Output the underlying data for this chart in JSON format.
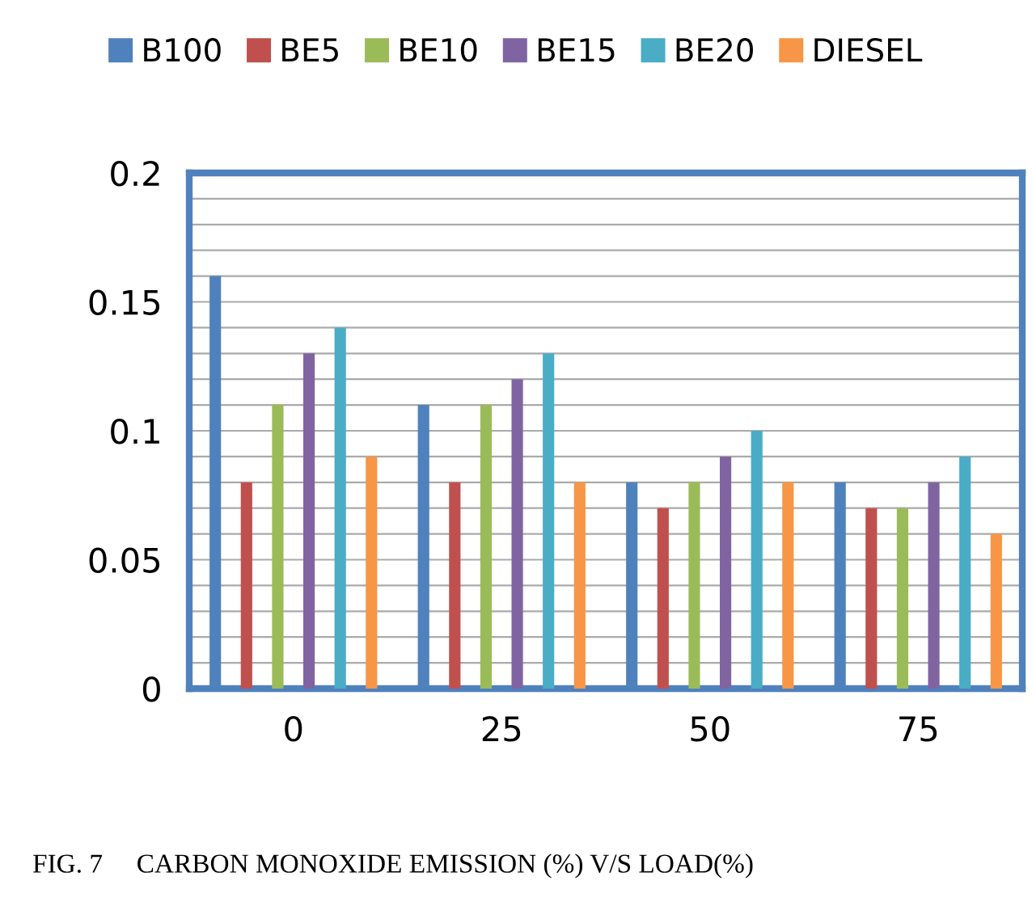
{
  "chart_data": {
    "type": "bar",
    "categories": [
      "0",
      "25",
      "50",
      "75"
    ],
    "series": [
      {
        "name": "B100",
        "color": "#4f81bd",
        "values": [
          0.16,
          0.11,
          0.08,
          0.08
        ]
      },
      {
        "name": "BE5",
        "color": "#c0504d",
        "values": [
          0.08,
          0.08,
          0.07,
          0.07
        ]
      },
      {
        "name": "BE10",
        "color": "#9bbb59",
        "values": [
          0.11,
          0.11,
          0.08,
          0.07
        ]
      },
      {
        "name": "BE15",
        "color": "#8064a2",
        "values": [
          0.13,
          0.12,
          0.09,
          0.08
        ]
      },
      {
        "name": "BE20",
        "color": "#4bacc6",
        "values": [
          0.14,
          0.13,
          0.1,
          0.09
        ]
      },
      {
        "name": "DIESEL",
        "color": "#f79646",
        "values": [
          0.09,
          0.08,
          0.08,
          0.06
        ]
      }
    ],
    "ylim": [
      0,
      0.2
    ],
    "yticks": [
      0,
      {
        "value": 0.01,
        "label": null
      },
      {
        "value": 0.02,
        "label": null
      },
      {
        "value": 0.03,
        "label": null
      },
      {
        "value": 0.04,
        "label": null
      },
      0.05,
      {
        "value": 0.06,
        "label": null
      },
      {
        "value": 0.07,
        "label": null
      },
      {
        "value": 0.08,
        "label": null
      },
      {
        "value": 0.09,
        "label": null
      },
      0.1,
      {
        "value": 0.11,
        "label": null
      },
      {
        "value": 0.12,
        "label": null
      },
      {
        "value": 0.13,
        "label": null
      },
      {
        "value": 0.14,
        "label": null
      },
      0.15,
      {
        "value": 0.16,
        "label": null
      },
      {
        "value": 0.17,
        "label": null
      },
      {
        "value": 0.18,
        "label": null
      },
      {
        "value": 0.19,
        "label": null
      },
      0.2
    ],
    "grid": "y",
    "legend": "top",
    "annotations": [
      "FIG. 7     CARBON MONOXIDE EMISSION (%) V/S LOAD(%)"
    ]
  }
}
